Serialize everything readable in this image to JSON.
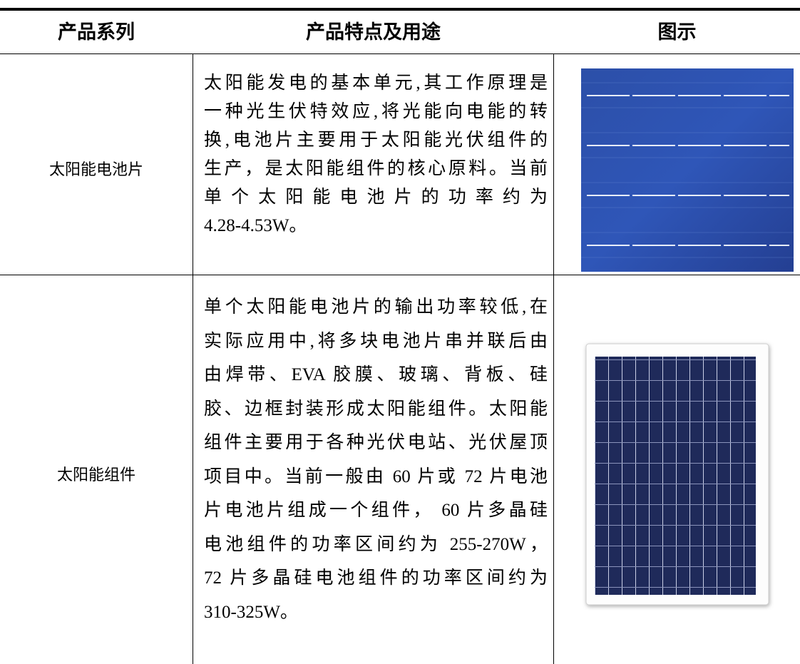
{
  "table": {
    "header": [
      "产品系列",
      "产品特点及用途",
      "图示"
    ],
    "rows": [
      {
        "series": "太阳能电池片",
        "description": [
          "太阳能发电的基本单元,其工作原理是",
          "一种光生伏特效应,将光能向电能的转",
          "换,电池片主要用于太阳能光伏组件的",
          "生产，是太阳能组件的核心原料。当前",
          "单个太阳能电池片的功率约为",
          "4.28-4.53W。"
        ]
      },
      {
        "series": "太阳能组件",
        "description": [
          "单个太阳能电池片的输出功率较低,在",
          "实际应用中,将多块电池片串并联后由",
          "由焊带、EVA 胶膜、玻璃、背板、硅",
          "胶、边框封装形成太阳能组件。太阳能",
          "组件主要用于各种光伏电站、光伏屋顶",
          "项目中。当前一般由 60 片或 72 片电池",
          "片电池片组成一个组件， 60 片多晶硅",
          "电池组件的功率区间约为 255-270W，",
          "72 片多晶硅电池组件的功率区间约为",
          "310-325W。"
        ]
      }
    ]
  }
}
